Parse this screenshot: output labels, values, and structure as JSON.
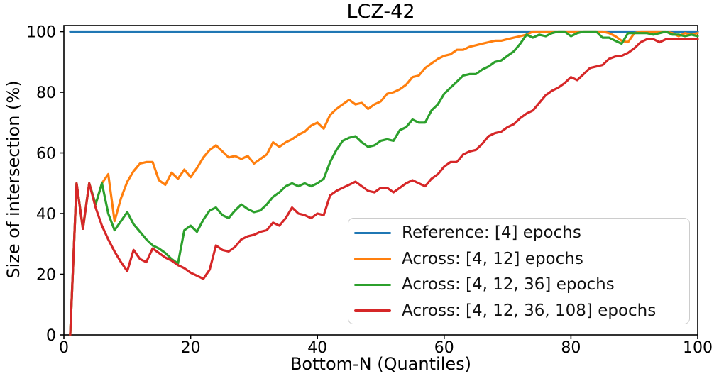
{
  "chart_data": {
    "type": "line",
    "title": "LCZ-42",
    "xlabel": "Bottom-N (Quantiles)",
    "ylabel": "Size of intersection (%)",
    "xlim": [
      0,
      100
    ],
    "ylim": [
      0,
      102
    ],
    "x_ticks": [
      0,
      20,
      40,
      60,
      80,
      100
    ],
    "y_ticks": [
      0,
      20,
      40,
      60,
      80,
      100
    ],
    "grid": false,
    "legend_position": "lower right inside",
    "x": [
      1,
      2,
      3,
      4,
      5,
      6,
      7,
      8,
      9,
      10,
      11,
      12,
      13,
      14,
      15,
      16,
      17,
      18,
      19,
      20,
      21,
      22,
      23,
      24,
      25,
      26,
      27,
      28,
      29,
      30,
      31,
      32,
      33,
      34,
      35,
      36,
      37,
      38,
      39,
      40,
      41,
      42,
      43,
      44,
      45,
      46,
      47,
      48,
      49,
      50,
      51,
      52,
      53,
      54,
      55,
      56,
      57,
      58,
      59,
      60,
      61,
      62,
      63,
      64,
      65,
      66,
      67,
      68,
      69,
      70,
      71,
      72,
      73,
      74,
      75,
      76,
      77,
      78,
      79,
      80,
      81,
      82,
      83,
      84,
      85,
      86,
      87,
      88,
      89,
      90,
      91,
      92,
      93,
      94,
      95,
      96,
      97,
      98,
      99,
      100
    ],
    "series": [
      {
        "name": "Reference: [4] epochs",
        "color": "#1f77b4",
        "values": [
          100,
          100,
          100,
          100,
          100,
          100,
          100,
          100,
          100,
          100,
          100,
          100,
          100,
          100,
          100,
          100,
          100,
          100,
          100,
          100,
          100,
          100,
          100,
          100,
          100,
          100,
          100,
          100,
          100,
          100,
          100,
          100,
          100,
          100,
          100,
          100,
          100,
          100,
          100,
          100,
          100,
          100,
          100,
          100,
          100,
          100,
          100,
          100,
          100,
          100,
          100,
          100,
          100,
          100,
          100,
          100,
          100,
          100,
          100,
          100,
          100,
          100,
          100,
          100,
          100,
          100,
          100,
          100,
          100,
          100,
          100,
          100,
          100,
          100,
          100,
          100,
          100,
          100,
          100,
          100,
          100,
          100,
          100,
          100,
          100,
          100,
          100,
          100,
          100,
          100,
          100,
          100,
          100,
          100,
          100,
          100,
          100,
          100,
          100,
          100
        ]
      },
      {
        "name": "Across: [4, 12] epochs",
        "color": "#ff7f0e",
        "values": [
          0,
          50,
          35,
          50,
          43,
          50,
          53,
          37.5,
          45,
          50.5,
          54,
          56.5,
          57,
          57,
          51,
          49.5,
          53.5,
          51.5,
          54.5,
          52,
          55,
          58.5,
          61,
          62.5,
          60.5,
          58.5,
          59,
          58,
          59,
          56.5,
          58,
          59.5,
          63.5,
          62,
          63.5,
          64.5,
          66,
          67,
          69,
          70,
          68,
          72.5,
          74.5,
          76,
          77.5,
          76,
          76.5,
          74.5,
          76,
          77,
          79.5,
          80,
          81,
          82.5,
          85,
          85.5,
          88,
          89.5,
          91,
          92,
          92.5,
          94,
          94,
          95,
          95.5,
          96,
          96.5,
          97,
          97,
          97.5,
          98,
          98.5,
          99,
          100,
          100,
          100,
          100,
          100,
          100,
          100,
          100,
          100,
          100,
          100,
          100,
          99.5,
          98.5,
          97,
          96.5,
          99.5,
          100,
          100,
          100,
          100,
          100,
          99.5,
          98.5,
          99.5,
          99,
          99.5
        ]
      },
      {
        "name": "Across: [4, 12, 36] epochs",
        "color": "#2ca02c",
        "values": [
          0,
          50,
          35,
          50,
          43,
          50,
          40,
          34.5,
          37.5,
          40.5,
          36.5,
          34,
          31.5,
          29.5,
          28.5,
          27,
          25,
          23.5,
          34.5,
          36,
          34,
          38,
          41,
          42,
          39.5,
          38.5,
          41,
          43,
          41.5,
          40.5,
          41,
          43,
          45.5,
          47,
          49,
          50,
          49,
          50,
          49,
          50,
          51.5,
          57,
          61,
          64,
          65,
          65.5,
          63.5,
          62,
          62.5,
          64,
          64.5,
          64,
          67.5,
          68.5,
          71,
          70,
          70,
          74,
          76,
          79.5,
          81.5,
          83.5,
          85.5,
          86,
          86,
          87.5,
          88.5,
          90,
          90.5,
          92,
          93.5,
          96,
          99,
          98,
          99,
          98.5,
          99.5,
          100,
          100,
          98.5,
          99.5,
          100,
          100,
          100,
          98,
          98,
          97,
          96,
          99.5,
          99.5,
          99.5,
          99.5,
          99,
          99.5,
          100,
          99,
          99,
          98.5,
          99,
          98.5
        ]
      },
      {
        "name": "Across: [4, 12, 36, 108] epochs",
        "color": "#d62728",
        "values": [
          0,
          50,
          35,
          50,
          42,
          36,
          31.5,
          27.5,
          24,
          21,
          28,
          25,
          24,
          28.5,
          27,
          25.5,
          24.5,
          23,
          22,
          20.5,
          19.5,
          18.5,
          21.5,
          29.5,
          28,
          27.5,
          29,
          31.5,
          32.5,
          33,
          34,
          34.5,
          37,
          36,
          38.5,
          42,
          40,
          39.5,
          38.5,
          40,
          39.5,
          46,
          47.5,
          48.5,
          49.5,
          50.5,
          49,
          47.5,
          47,
          48.5,
          48.5,
          47,
          48.5,
          50,
          51,
          50,
          49,
          51.5,
          53,
          55.5,
          57,
          57,
          59.5,
          60.5,
          61,
          63,
          65.5,
          66.5,
          67,
          68.5,
          69.5,
          71.5,
          73,
          74,
          76.5,
          79,
          80.5,
          81.5,
          83,
          85,
          84,
          86,
          88,
          88.5,
          89,
          91,
          91.8,
          92,
          93,
          94.5,
          96.5,
          97.5,
          97.5,
          96.5,
          97.5,
          97.5,
          97.5,
          97.5,
          97.5,
          97.5
        ]
      }
    ]
  }
}
